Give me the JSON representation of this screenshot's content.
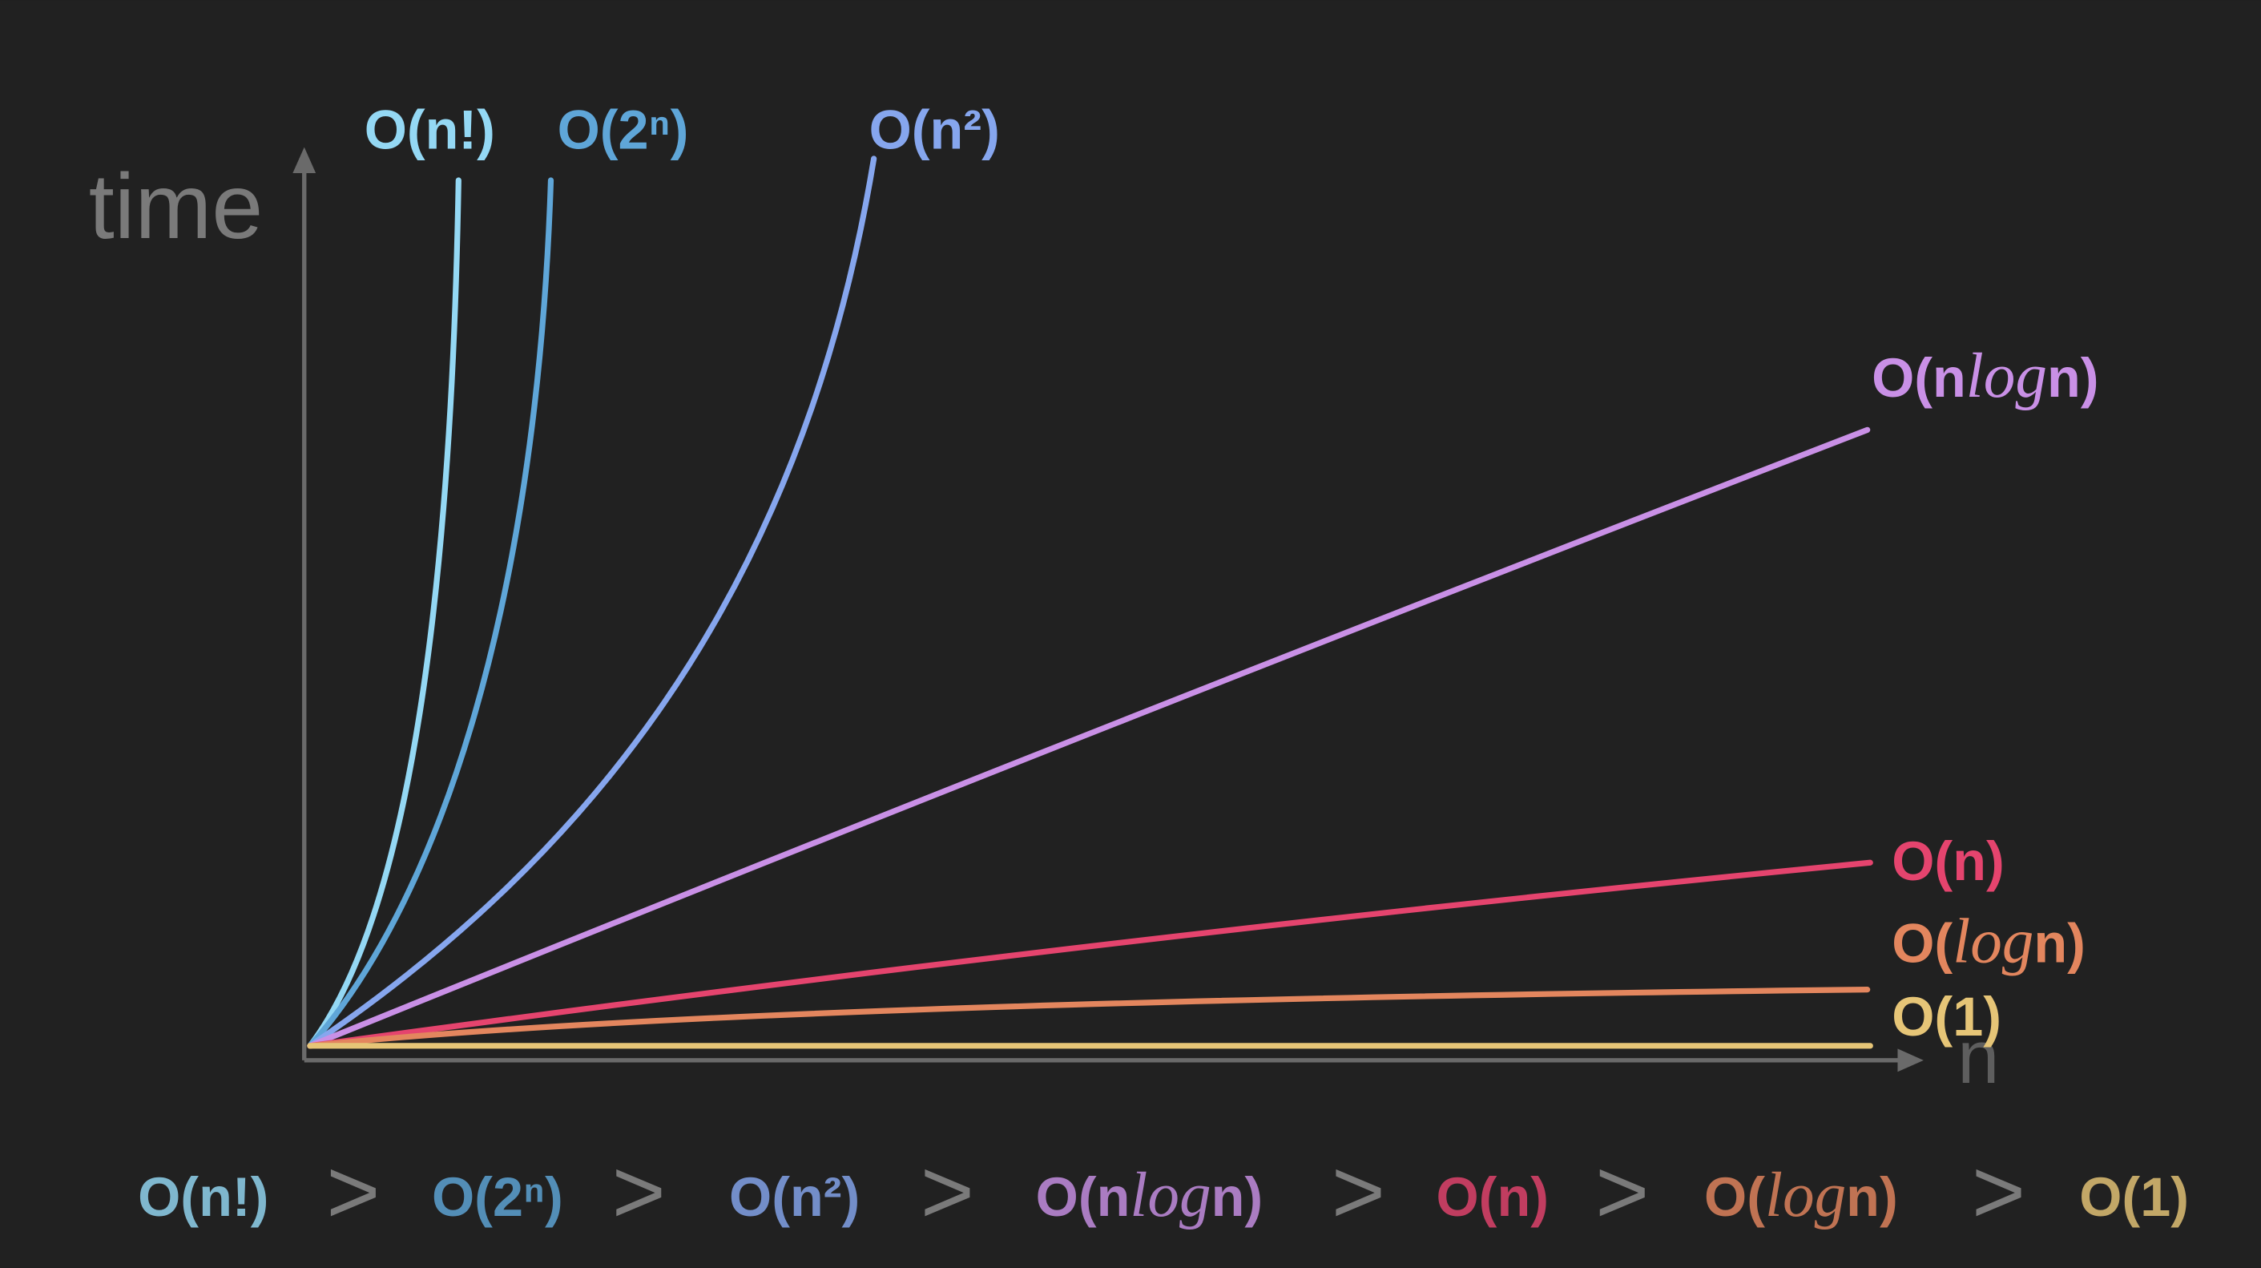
{
  "axes": {
    "y_label": "time",
    "x_label": "n"
  },
  "curves": [
    {
      "label": [
        "O(n!)"
      ],
      "color": "#94d8f4"
    },
    {
      "label": [
        "O(2ⁿ)"
      ],
      "color": "#5fa6d8"
    },
    {
      "label": [
        "O(n²)"
      ],
      "color": "#86a6ee"
    },
    {
      "label": [
        "O(n",
        "log",
        "n)"
      ],
      "color": "#c990e6"
    },
    {
      "label": [
        "O(n)"
      ],
      "color": "#e5446e"
    },
    {
      "label": [
        "O(",
        "log",
        "n)"
      ],
      "color": "#e3865e"
    },
    {
      "label": [
        "O(1)"
      ],
      "color": "#e6c577"
    }
  ],
  "ranking": {
    "separator": ">"
  }
}
